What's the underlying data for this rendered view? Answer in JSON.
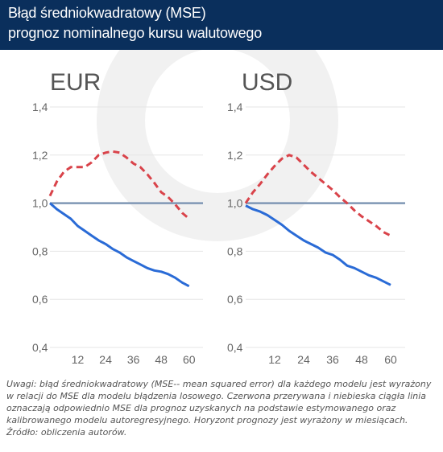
{
  "header": {
    "title_line1": "Błąd średniokwadratowy (MSE)",
    "title_line2": "prognoz nominalnego kursu walutowego"
  },
  "colors": {
    "header_bg": "#0a2f5c",
    "red_dashed": "#d9434a",
    "blue_solid": "#2a6bd6",
    "reference_line": "#7f97b5",
    "watermark": "#ececec",
    "grid": "#e5e5e5"
  },
  "chart_data": [
    {
      "type": "line",
      "title": "EUR",
      "x_ticks": [
        12,
        24,
        36,
        48,
        60
      ],
      "y_ticks": [
        "1,4",
        "1,2",
        "1,0",
        "0,8",
        "0,6",
        "0,4"
      ],
      "ylim": [
        0.4,
        1.4
      ],
      "xlim": [
        0,
        66
      ],
      "reference_value": 1.0,
      "grid": "horizontal",
      "series": [
        {
          "style": "dashed-red",
          "x": [
            0,
            3,
            6,
            9,
            12,
            15,
            18,
            21,
            24,
            27,
            30,
            33,
            36,
            39,
            42,
            45,
            48,
            51,
            54,
            57,
            60
          ],
          "y": [
            1.03,
            1.09,
            1.13,
            1.15,
            1.15,
            1.15,
            1.17,
            1.2,
            1.21,
            1.215,
            1.21,
            1.19,
            1.165,
            1.15,
            1.12,
            1.085,
            1.045,
            1.025,
            0.995,
            0.96,
            0.935
          ]
        },
        {
          "style": "solid-blue",
          "x": [
            0,
            3,
            6,
            9,
            12,
            15,
            18,
            21,
            24,
            27,
            30,
            33,
            36,
            39,
            42,
            45,
            48,
            51,
            54,
            57,
            60
          ],
          "y": [
            1.0,
            0.975,
            0.955,
            0.935,
            0.905,
            0.885,
            0.865,
            0.845,
            0.83,
            0.81,
            0.795,
            0.775,
            0.76,
            0.745,
            0.73,
            0.72,
            0.715,
            0.705,
            0.69,
            0.67,
            0.655
          ]
        }
      ]
    },
    {
      "type": "line",
      "title": "USD",
      "x_ticks": [
        12,
        24,
        36,
        48,
        60
      ],
      "y_ticks": [
        "1,4",
        "1,2",
        "1,0",
        "0,8",
        "0,6",
        "0,4"
      ],
      "ylim": [
        0.4,
        1.4
      ],
      "xlim": [
        0,
        66
      ],
      "reference_value": 1.0,
      "grid": "horizontal",
      "series": [
        {
          "style": "dashed-red",
          "x": [
            0,
            3,
            6,
            9,
            12,
            15,
            18,
            21,
            24,
            27,
            30,
            33,
            36,
            39,
            42,
            45,
            48,
            51,
            54,
            57,
            60
          ],
          "y": [
            1.0,
            1.045,
            1.08,
            1.12,
            1.155,
            1.185,
            1.2,
            1.19,
            1.16,
            1.13,
            1.105,
            1.08,
            1.055,
            1.025,
            1.0,
            0.97,
            0.945,
            0.925,
            0.905,
            0.88,
            0.865
          ]
        },
        {
          "style": "solid-blue",
          "x": [
            0,
            3,
            6,
            9,
            12,
            15,
            18,
            21,
            24,
            27,
            30,
            33,
            36,
            39,
            42,
            45,
            48,
            51,
            54,
            57,
            60
          ],
          "y": [
            0.99,
            0.975,
            0.965,
            0.95,
            0.93,
            0.91,
            0.885,
            0.865,
            0.845,
            0.83,
            0.815,
            0.795,
            0.785,
            0.765,
            0.74,
            0.73,
            0.715,
            0.7,
            0.69,
            0.675,
            0.66
          ]
        }
      ]
    }
  ],
  "notes": {
    "line1": "Uwagi: błąd średniokwadratowy (MSE-- mean squared error) dla każdego modelu jest wyrażony w relacji do MSE dla modelu błądzenia losowego. Czerwona przerywana i niebieska ciągła linia oznaczają odpowiednio MSE dla prognoz uzyskanych na podstawie estymowanego oraz kalibrowanego modelu autoregresyjnego. Horyzont prognozy jest wyrażony w miesiącach.",
    "line2": "Źródło: obliczenia autorów."
  }
}
